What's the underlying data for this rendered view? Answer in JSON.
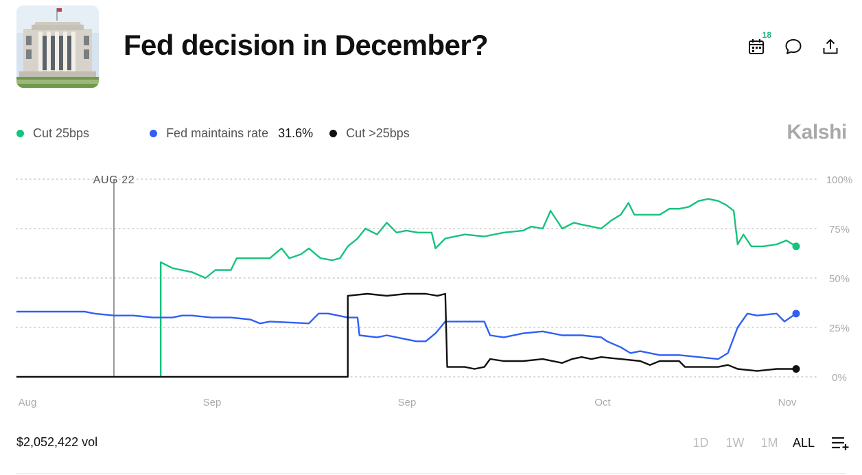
{
  "header": {
    "title": "Fed decision in December?",
    "calendar_badge": "18"
  },
  "legend": {
    "items": [
      {
        "name": "Cut 25bps",
        "color": "#17c27f",
        "value": ""
      },
      {
        "name": "Fed maintains rate",
        "color": "#2f5ff5",
        "value": "31.6%"
      },
      {
        "name": "Cut >25bps",
        "color": "#111111",
        "value": ""
      }
    ]
  },
  "brand": "Kalshi",
  "footer": {
    "volume": "$2,052,422 vol",
    "ranges": [
      "1D",
      "1W",
      "1M",
      "ALL"
    ],
    "active_range": "ALL"
  },
  "icons": {
    "calendar": "calendar-icon",
    "comment": "comment-icon",
    "share": "share-icon",
    "add_list": "add-list-icon"
  },
  "chart_data": {
    "type": "line",
    "x_ticks": [
      "Aug",
      "Sep",
      "Sep",
      "Oct",
      "Nov"
    ],
    "y_ticks": [
      "100%",
      "75%",
      "50%",
      "25%",
      "0%"
    ],
    "ylim": [
      0,
      100
    ],
    "grid": true,
    "annotation": {
      "label": "AUG 22",
      "x": 5
    },
    "x_range": [
      0,
      40
    ],
    "series": [
      {
        "name": "Cut 25bps",
        "color": "#17c27f",
        "points": [
          [
            7.4,
            0
          ],
          [
            7.4,
            58
          ],
          [
            8,
            55
          ],
          [
            9,
            53
          ],
          [
            9.7,
            50
          ],
          [
            10.2,
            54
          ],
          [
            11,
            54
          ],
          [
            11.3,
            60
          ],
          [
            12,
            60
          ],
          [
            12.4,
            60
          ],
          [
            13,
            60
          ],
          [
            13.6,
            65
          ],
          [
            14,
            60
          ],
          [
            14.6,
            62
          ],
          [
            15,
            65
          ],
          [
            15.6,
            60
          ],
          [
            16.2,
            59
          ],
          [
            16.6,
            60
          ],
          [
            17,
            66
          ],
          [
            17.5,
            70
          ],
          [
            17.9,
            75
          ],
          [
            18.5,
            72
          ],
          [
            19,
            78
          ],
          [
            19.5,
            73
          ],
          [
            20,
            74
          ],
          [
            20.6,
            73
          ],
          [
            21.3,
            73
          ],
          [
            21.5,
            65
          ],
          [
            22,
            70
          ],
          [
            23,
            72
          ],
          [
            24,
            71
          ],
          [
            25,
            73
          ],
          [
            26,
            74
          ],
          [
            26.4,
            76
          ],
          [
            27,
            75
          ],
          [
            27.4,
            84
          ],
          [
            28,
            75
          ],
          [
            28.6,
            78
          ],
          [
            29,
            77
          ],
          [
            29.5,
            76
          ],
          [
            30,
            75
          ],
          [
            30.5,
            79
          ],
          [
            31,
            82
          ],
          [
            31.4,
            88
          ],
          [
            31.7,
            82
          ],
          [
            32,
            82
          ],
          [
            33,
            82
          ],
          [
            33.5,
            85
          ],
          [
            34,
            85
          ],
          [
            34.5,
            86
          ],
          [
            35,
            89
          ],
          [
            35.5,
            90
          ],
          [
            36,
            89
          ],
          [
            36.4,
            87
          ],
          [
            36.8,
            84
          ],
          [
            37,
            67
          ],
          [
            37.3,
            72
          ],
          [
            37.7,
            66
          ],
          [
            38.3,
            66
          ],
          [
            39,
            67
          ],
          [
            39.5,
            69
          ],
          [
            40,
            66
          ]
        ]
      },
      {
        "name": "Fed maintains rate",
        "color": "#2f5ff5",
        "points": [
          [
            0,
            33
          ],
          [
            3.5,
            33
          ],
          [
            4,
            32
          ],
          [
            5,
            31
          ],
          [
            6,
            31
          ],
          [
            7,
            30
          ],
          [
            8,
            30
          ],
          [
            8.5,
            31
          ],
          [
            9,
            31
          ],
          [
            10,
            30
          ],
          [
            11,
            30
          ],
          [
            12,
            29
          ],
          [
            12.5,
            27
          ],
          [
            13,
            28
          ],
          [
            15,
            27
          ],
          [
            15.5,
            32
          ],
          [
            16,
            32
          ],
          [
            17,
            30
          ],
          [
            17.5,
            30
          ],
          [
            17.6,
            21
          ],
          [
            18.5,
            20
          ],
          [
            19,
            21
          ],
          [
            20,
            19
          ],
          [
            20.5,
            18
          ],
          [
            21,
            18
          ],
          [
            21.5,
            22
          ],
          [
            22,
            28
          ],
          [
            23,
            28
          ],
          [
            24,
            28
          ],
          [
            24.3,
            21
          ],
          [
            25,
            20
          ],
          [
            26,
            22
          ],
          [
            27,
            23
          ],
          [
            28,
            21
          ],
          [
            29,
            21
          ],
          [
            30,
            20
          ],
          [
            30.3,
            18
          ],
          [
            31,
            15
          ],
          [
            31.5,
            12
          ],
          [
            32,
            13
          ],
          [
            33,
            11
          ],
          [
            34,
            11
          ],
          [
            35,
            10
          ],
          [
            36,
            9
          ],
          [
            36.5,
            12
          ],
          [
            37,
            25
          ],
          [
            37.5,
            32
          ],
          [
            38,
            31
          ],
          [
            39,
            32
          ],
          [
            39.4,
            28
          ],
          [
            40,
            32
          ]
        ]
      },
      {
        "name": "Cut >25bps",
        "color": "#111111",
        "points": [
          [
            0,
            0
          ],
          [
            17,
            0
          ],
          [
            17,
            41
          ],
          [
            18,
            42
          ],
          [
            19,
            41
          ],
          [
            20,
            42
          ],
          [
            21,
            42
          ],
          [
            21.6,
            41
          ],
          [
            22,
            42
          ],
          [
            22.1,
            5
          ],
          [
            23,
            5
          ],
          [
            23.5,
            4
          ],
          [
            24,
            5
          ],
          [
            24.3,
            9
          ],
          [
            25,
            8
          ],
          [
            26,
            8
          ],
          [
            27,
            9
          ],
          [
            28,
            7
          ],
          [
            28.5,
            9
          ],
          [
            29,
            10
          ],
          [
            29.5,
            9
          ],
          [
            30,
            10
          ],
          [
            31,
            9
          ],
          [
            32,
            8
          ],
          [
            32.5,
            6
          ],
          [
            33,
            8
          ],
          [
            34,
            8
          ],
          [
            34.3,
            5
          ],
          [
            35,
            5
          ],
          [
            36,
            5
          ],
          [
            36.5,
            6
          ],
          [
            37,
            4
          ],
          [
            38,
            3
          ],
          [
            39,
            4
          ],
          [
            40,
            4
          ]
        ]
      }
    ]
  }
}
